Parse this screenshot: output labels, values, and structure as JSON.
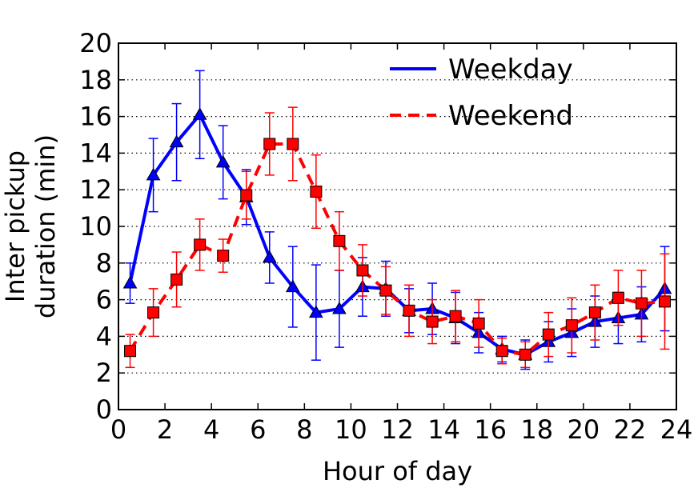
{
  "chart_data": {
    "type": "line",
    "title": "",
    "xlabel": "Hour of day",
    "ylabel_lines": [
      "Inter pickup",
      "duration (min)"
    ],
    "xlim": [
      0,
      24
    ],
    "ylim": [
      0,
      20
    ],
    "xticks": [
      0,
      2,
      4,
      6,
      8,
      10,
      12,
      14,
      16,
      18,
      20,
      22,
      24
    ],
    "yticks": [
      0,
      2,
      4,
      6,
      8,
      10,
      12,
      14,
      16,
      18,
      20
    ],
    "grid": "horizontal-dotted",
    "legend_position": "top-right",
    "x": [
      0.5,
      1.5,
      2.5,
      3.5,
      4.5,
      5.5,
      6.5,
      7.5,
      8.5,
      9.5,
      10.5,
      11.5,
      12.5,
      13.5,
      14.5,
      15.5,
      16.5,
      17.5,
      18.5,
      19.5,
      20.5,
      21.5,
      22.5,
      23.5
    ],
    "series": [
      {
        "name": "Weekday",
        "color": "#0000ff",
        "line_style": "solid",
        "marker": "triangle",
        "values": [
          6.9,
          12.8,
          14.6,
          16.1,
          13.5,
          11.6,
          8.3,
          6.7,
          5.3,
          5.5,
          6.7,
          6.6,
          5.4,
          5.5,
          5.0,
          4.2,
          3.3,
          3.0,
          3.7,
          4.2,
          4.8,
          5.0,
          5.2,
          6.6
        ],
        "err": [
          1.1,
          2.0,
          2.1,
          2.4,
          2.0,
          1.5,
          1.4,
          2.2,
          2.6,
          2.1,
          1.6,
          1.5,
          1.2,
          1.4,
          1.4,
          1.1,
          0.7,
          0.8,
          1.1,
          1.3,
          1.4,
          1.4,
          1.5,
          2.3
        ]
      },
      {
        "name": "Weekend",
        "color": "#ff0000",
        "line_style": "dashed",
        "marker": "square",
        "values": [
          3.2,
          5.3,
          7.1,
          9.0,
          8.4,
          11.7,
          14.5,
          14.5,
          11.9,
          9.2,
          7.6,
          6.5,
          5.4,
          4.8,
          5.1,
          4.7,
          3.2,
          3.0,
          4.1,
          4.6,
          5.3,
          6.1,
          5.8,
          5.9
        ],
        "err": [
          0.9,
          1.3,
          1.5,
          1.4,
          0.9,
          1.3,
          1.7,
          2.0,
          2.0,
          1.6,
          1.4,
          1.3,
          1.4,
          1.2,
          1.4,
          1.3,
          0.7,
          0.7,
          1.2,
          1.5,
          1.5,
          1.5,
          1.8,
          2.6
        ]
      }
    ]
  }
}
